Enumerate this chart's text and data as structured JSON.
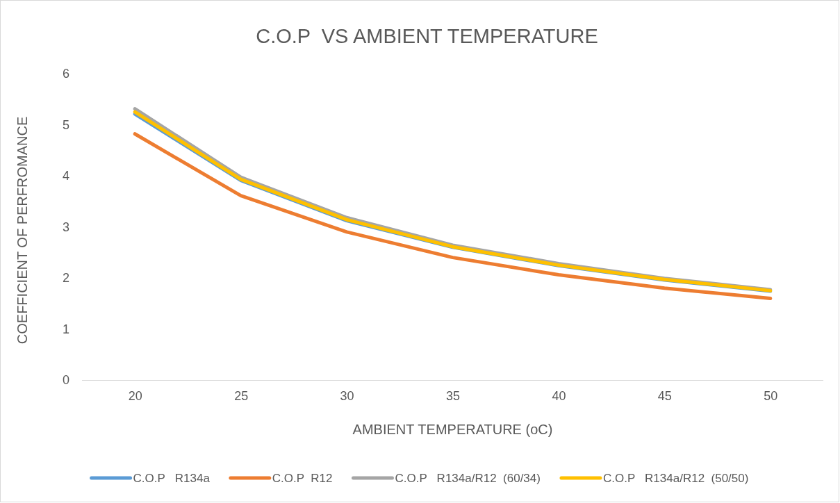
{
  "chart_data": {
    "type": "line",
    "title": "C.O.P  VS AMBIENT TEMPERATURE",
    "xlabel": "AMBIENT TEMPERATURE (oC)",
    "ylabel": "COEFFICIENT OF PERFROMANCE",
    "categories": [
      "20",
      "25",
      "30",
      "35",
      "40",
      "45",
      "50"
    ],
    "series": [
      {
        "name": "C.O.P   R134a",
        "color": "#5b9bd5",
        "values": [
          5.21,
          3.91,
          3.12,
          2.6,
          2.24,
          1.96,
          1.74
        ]
      },
      {
        "name": "C.O.P  R12",
        "color": "#ed7d31",
        "values": [
          4.82,
          3.61,
          2.9,
          2.4,
          2.06,
          1.8,
          1.6
        ]
      },
      {
        "name": "C.O.P   R134a/R12  (60/34)",
        "color": "#a5a5a5",
        "values": [
          5.31,
          3.97,
          3.18,
          2.64,
          2.28,
          1.99,
          1.77
        ]
      },
      {
        "name": "C.O.P   R134a/R12  (50/50)",
        "color": "#ffc000",
        "values": [
          5.25,
          3.93,
          3.14,
          2.61,
          2.25,
          1.97,
          1.75
        ]
      }
    ],
    "ylim": [
      0,
      6
    ],
    "yticks": [
      0,
      1,
      2,
      3,
      4,
      5,
      6
    ],
    "grid": false,
    "legend": "bottom"
  }
}
